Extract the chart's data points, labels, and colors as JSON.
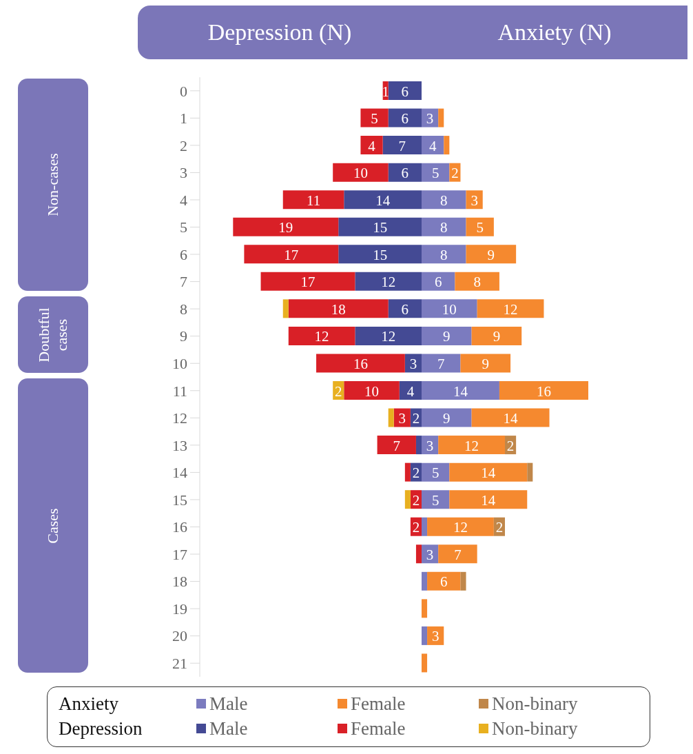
{
  "chart_data": [
    {
      "type": "bar",
      "orientation": "horizontal",
      "stacked": true,
      "title": "Depression (N)",
      "legend_title": "Depression",
      "legend": "bottom",
      "tick_labels": "y",
      "xlim": [
        40,
        0
      ],
      "categories": [
        "0",
        "1",
        "2",
        "3",
        "4",
        "5",
        "6",
        "7",
        "8",
        "9",
        "10",
        "11",
        "12",
        "13",
        "14",
        "15",
        "16",
        "17",
        "18",
        "19",
        "20",
        "21"
      ],
      "annotations": [
        "Non-cases",
        "Doubtful cases",
        "Cases"
      ],
      "series": [
        {
          "name": "Male",
          "color": "#444a94",
          "values": [
            6,
            6,
            7,
            6,
            14,
            15,
            15,
            12,
            6,
            12,
            3,
            4,
            2,
            1,
            2,
            null,
            null,
            null,
            null,
            null,
            null,
            null
          ],
          "value_labels": [
            "6",
            "6",
            "7",
            "6",
            "14",
            "15",
            "15",
            "12",
            "6",
            "12",
            "3",
            "4",
            "2",
            null,
            "2",
            null,
            null,
            null,
            null,
            null,
            null,
            null
          ]
        },
        {
          "name": "Female",
          "color": "#d92027",
          "values": [
            1,
            5,
            4,
            10,
            11,
            19,
            17,
            17,
            18,
            12,
            16,
            10,
            3,
            7,
            1,
            2,
            2,
            1,
            null,
            null,
            null,
            null
          ],
          "value_labels": [
            "1",
            "5",
            "4",
            "10",
            "11",
            "19",
            "17",
            "17",
            "18",
            "12",
            "16",
            "10",
            "3",
            "7",
            null,
            "2",
            "2",
            null,
            null,
            null,
            null,
            null
          ]
        },
        {
          "name": "Non-binary",
          "color": "#e8b020",
          "values": [
            null,
            null,
            null,
            null,
            null,
            null,
            null,
            null,
            1,
            null,
            null,
            2,
            1,
            null,
            null,
            1,
            null,
            null,
            null,
            null,
            null,
            null
          ],
          "value_labels": [
            null,
            null,
            null,
            null,
            null,
            null,
            null,
            null,
            null,
            null,
            null,
            "2",
            null,
            null,
            null,
            null,
            null,
            null,
            null,
            null,
            null,
            null
          ]
        }
      ]
    },
    {
      "type": "bar",
      "orientation": "horizontal",
      "stacked": true,
      "title": "Anxiety (N)",
      "legend_title": "Anxiety",
      "legend": "bottom",
      "tick_labels": false,
      "categories": [
        "0",
        "1",
        "2",
        "3",
        "4",
        "5",
        "6",
        "7",
        "8",
        "9",
        "10",
        "11",
        "12",
        "13",
        "14",
        "15",
        "16",
        "17",
        "18",
        "19",
        "20",
        "21"
      ],
      "series": [
        {
          "name": "Male",
          "color": "#7b7bbf",
          "values": [
            null,
            3,
            4,
            5,
            8,
            8,
            8,
            6,
            10,
            9,
            7,
            14,
            9,
            3,
            5,
            5,
            1,
            3,
            1,
            null,
            1,
            null
          ],
          "value_labels": [
            null,
            "3",
            "4",
            "5",
            "8",
            "8",
            "8",
            "6",
            "10",
            "9",
            "7",
            "14",
            "9",
            "3",
            "5",
            "5",
            null,
            "3",
            null,
            null,
            null,
            null
          ]
        },
        {
          "name": "Female",
          "color": "#f5892f",
          "values": [
            null,
            1,
            1,
            2,
            3,
            5,
            9,
            8,
            12,
            9,
            9,
            16,
            14,
            12,
            14,
            14,
            12,
            7,
            6,
            1,
            3,
            1
          ],
          "value_labels": [
            null,
            null,
            null,
            "2",
            "3",
            "5",
            "9",
            "8",
            "12",
            "9",
            "9",
            "16",
            "14",
            "12",
            "14",
            "14",
            "12",
            "7",
            "6",
            null,
            "3",
            null
          ]
        },
        {
          "name": "Non-binary",
          "color": "#c0874a",
          "values": [
            null,
            null,
            null,
            null,
            null,
            null,
            null,
            null,
            null,
            null,
            null,
            null,
            null,
            2,
            1,
            null,
            2,
            null,
            1,
            null,
            null,
            null
          ],
          "value_labels": [
            null,
            null,
            null,
            null,
            null,
            null,
            null,
            null,
            null,
            null,
            null,
            null,
            null,
            "2",
            null,
            null,
            "2",
            null,
            null,
            null,
            null,
            null
          ]
        }
      ]
    }
  ]
}
